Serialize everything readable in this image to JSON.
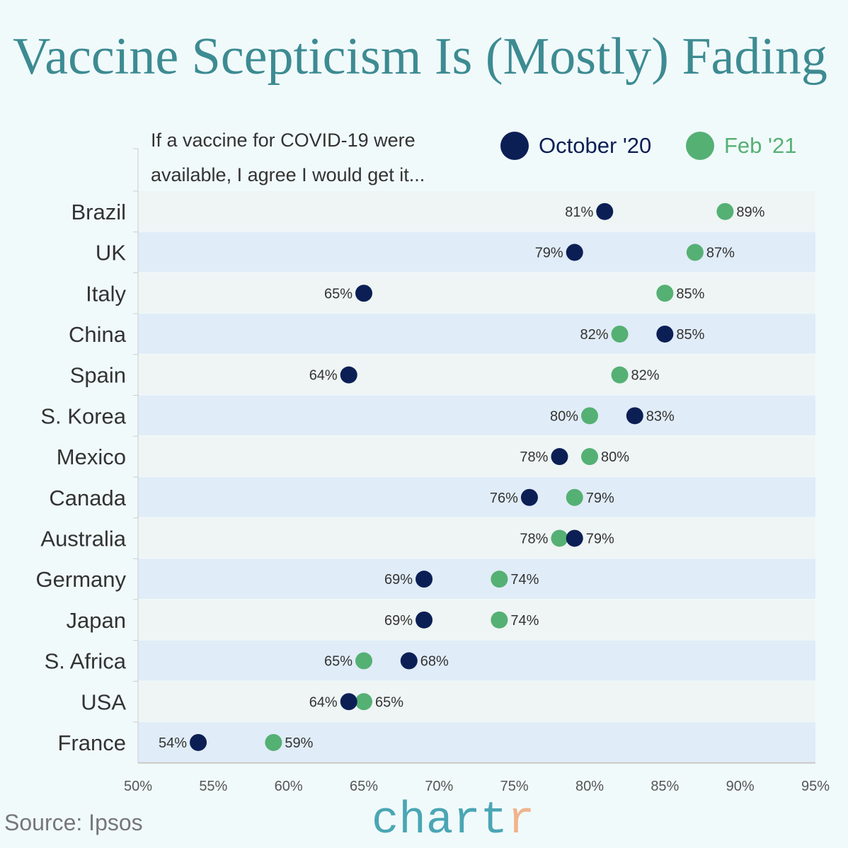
{
  "chart_data": {
    "type": "scatter",
    "title": "Vaccine Scepticism Is (Mostly) Fading",
    "subtitle": "If a vaccine for COVID-19 were available, I agree I would get it...",
    "xlim": [
      50,
      95
    ],
    "x_ticks": [
      "50%",
      "55%",
      "60%",
      "65%",
      "70%",
      "75%",
      "80%",
      "85%",
      "90%",
      "95%"
    ],
    "x_tick_values": [
      50,
      55,
      60,
      65,
      70,
      75,
      80,
      85,
      90,
      95
    ],
    "categories": [
      "Brazil",
      "UK",
      "Italy",
      "China",
      "Spain",
      "S. Korea",
      "Mexico",
      "Canada",
      "Australia",
      "Germany",
      "Japan",
      "S. Africa",
      "USA",
      "France"
    ],
    "series": [
      {
        "name": "October '20",
        "color": "#0b1f55",
        "values": [
          81,
          79,
          65,
          85,
          64,
          83,
          78,
          76,
          79,
          69,
          69,
          68,
          64,
          54
        ]
      },
      {
        "name": "Feb '21",
        "color": "#55b074",
        "values": [
          89,
          87,
          85,
          82,
          82,
          80,
          80,
          79,
          78,
          74,
          74,
          65,
          65,
          59
        ]
      }
    ],
    "legend_placement": "top-right",
    "grid": false,
    "row_colors": [
      "#eef5f4",
      "#e0ecf7"
    ]
  },
  "footer": {
    "source": "Source: Ipsos",
    "logo_main": "chart",
    "logo_accent": "r"
  }
}
